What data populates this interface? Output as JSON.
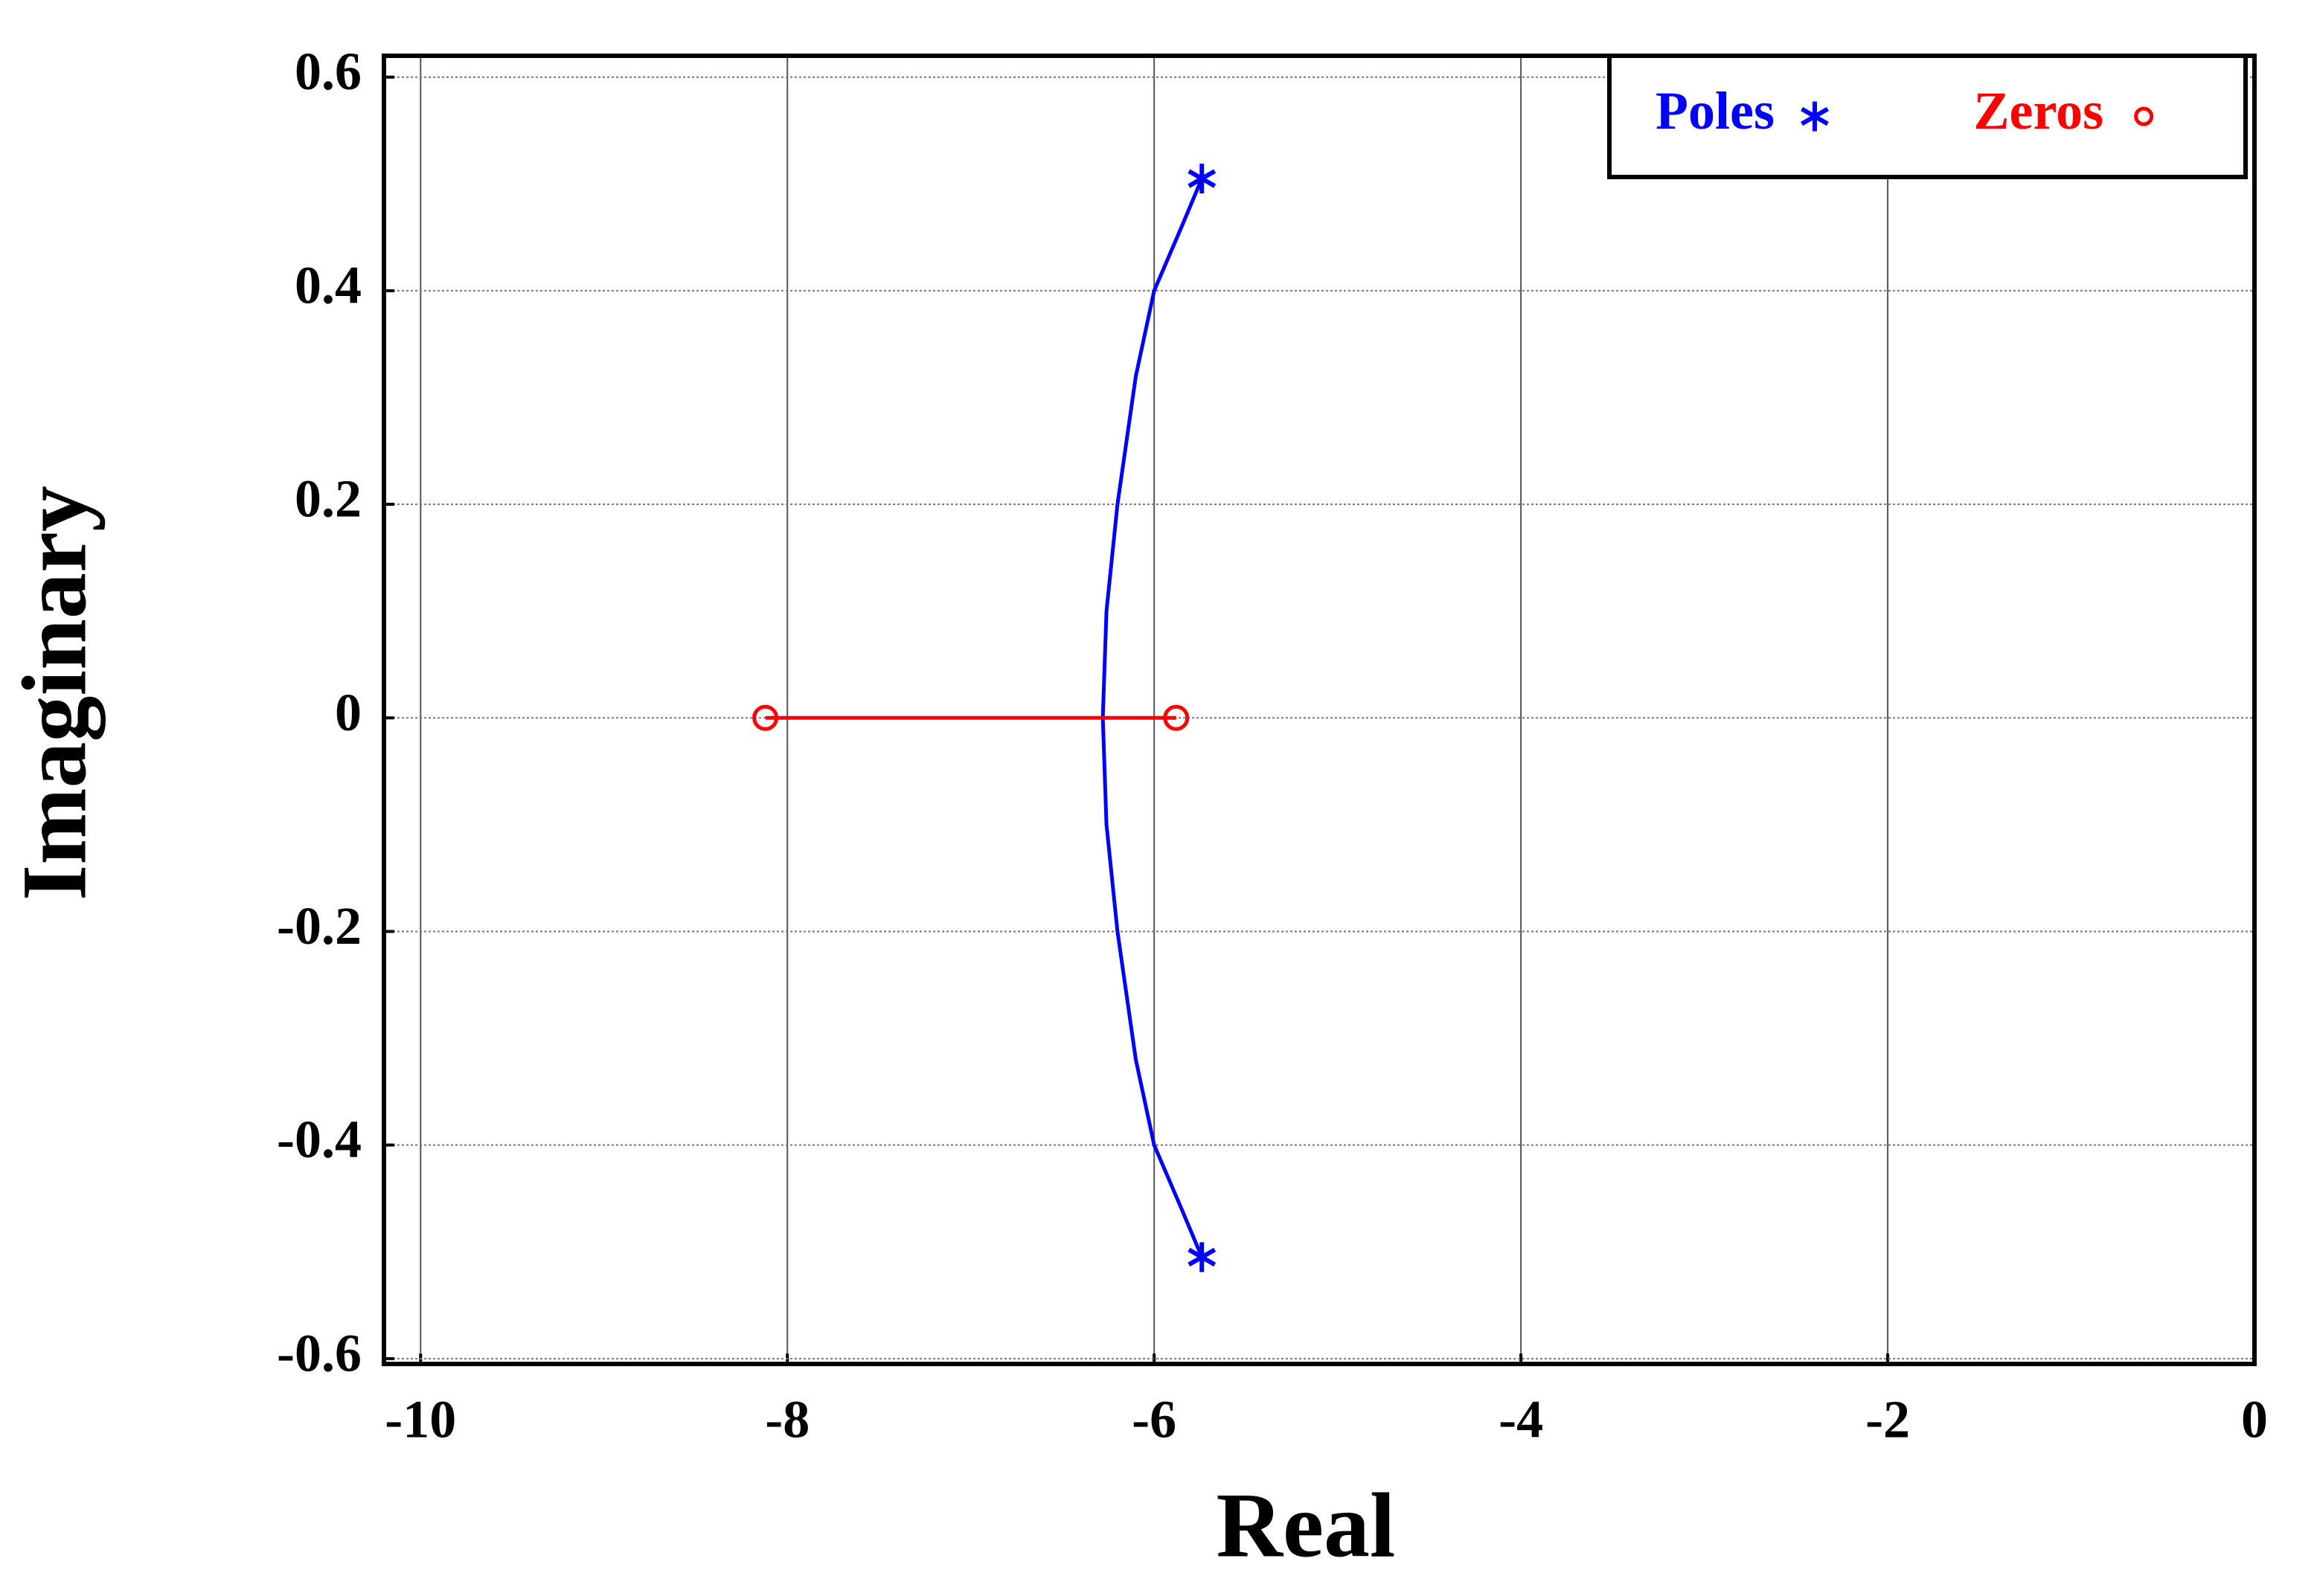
{
  "chart_data": {
    "type": "root-locus",
    "xlabel": "Real",
    "ylabel": "Imaginary",
    "xlim": [
      -10.2,
      0
    ],
    "ylim": [
      -0.605,
      0.62
    ],
    "xticks": [
      -10,
      -8,
      -6,
      -4,
      -2,
      0
    ],
    "yticks": [
      -0.6,
      -0.4,
      -0.2,
      0,
      0.2,
      0.4,
      0.6
    ],
    "grid": true,
    "legend_position": "top-right",
    "series": [
      {
        "name": "Poles",
        "color": "#0000ff",
        "marker": "asterisk",
        "x": [
          -5.74,
          -5.74
        ],
        "y": [
          0.505,
          -0.505
        ]
      },
      {
        "name": "Zeros",
        "color": "#ff0000",
        "marker": "circle",
        "x": [
          -8.12,
          -5.88
        ],
        "y": [
          0,
          0
        ]
      }
    ],
    "loci": [
      {
        "color": "#0000ff",
        "x": [
          -5.74,
          -5.85,
          -6.0,
          -6.1,
          -6.2,
          -6.26,
          -6.28
        ],
        "y": [
          0.505,
          0.46,
          0.4,
          0.32,
          0.2,
          0.1,
          0
        ]
      },
      {
        "color": "#0000ff",
        "x": [
          -5.74,
          -5.85,
          -6.0,
          -6.1,
          -6.2,
          -6.26,
          -6.28
        ],
        "y": [
          -0.505,
          -0.46,
          -0.4,
          -0.32,
          -0.2,
          -0.1,
          0
        ]
      },
      {
        "color": "#ff0000",
        "x": [
          -8.12,
          -5.88
        ],
        "y": [
          0,
          0
        ]
      }
    ]
  }
}
